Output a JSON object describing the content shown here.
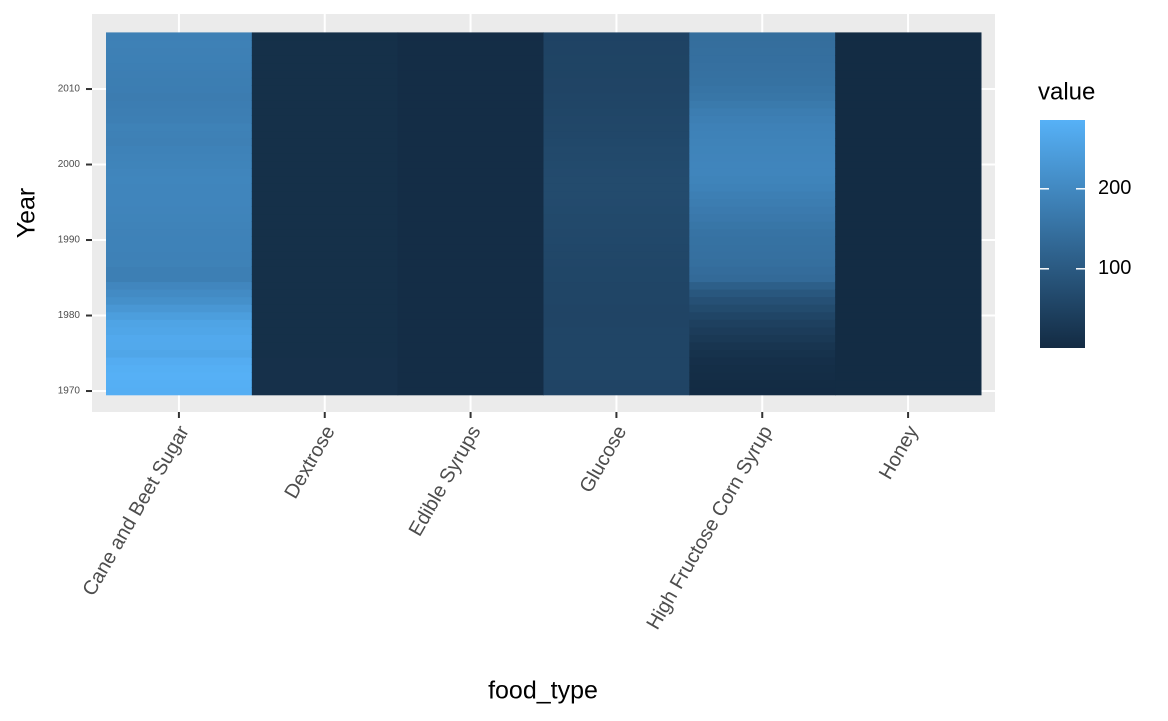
{
  "chart_data": {
    "type": "heatmap",
    "x_label": "food_type",
    "y_label": "Year",
    "categories": [
      "Cane and Beet Sugar",
      "Dextrose",
      "Edible Syrups",
      "Glucose",
      "High Fructose Corn Syrup",
      "Honey"
    ],
    "y": [
      1970,
      1971,
      1972,
      1973,
      1974,
      1975,
      1976,
      1977,
      1978,
      1979,
      1980,
      1981,
      1982,
      1983,
      1984,
      1985,
      1986,
      1987,
      1988,
      1989,
      1990,
      1991,
      1992,
      1993,
      1994,
      1995,
      1996,
      1997,
      1998,
      1999,
      2000,
      2001,
      2002,
      2003,
      2004,
      2005,
      2006,
      2007,
      2008,
      2009,
      2010,
      2011,
      2012,
      2013,
      2014,
      2015,
      2016,
      2017
    ],
    "values": [
      [
        280,
        282,
        284,
        281,
        276,
        262,
        268,
        270,
        262,
        258,
        245,
        230,
        215,
        205,
        195,
        180,
        180,
        185,
        184,
        186,
        186,
        187,
        188,
        190,
        191,
        193,
        192,
        193,
        194,
        192,
        190,
        188,
        186,
        182,
        183,
        185,
        180,
        178,
        176,
        174,
        176,
        177,
        178,
        180,
        181,
        182,
        183,
        182
      ],
      [
        12,
        12,
        12,
        12,
        12,
        11,
        11,
        11,
        11,
        11,
        11,
        11,
        11,
        11,
        11,
        11,
        11,
        11,
        11,
        11,
        11,
        11,
        11,
        11,
        11,
        11,
        11,
        11,
        11,
        11,
        11,
        11,
        11,
        11,
        11,
        11,
        11,
        11,
        11,
        11,
        11,
        11,
        11,
        11,
        11,
        11,
        11,
        11
      ],
      [
        5,
        5,
        5,
        5,
        5,
        5,
        5,
        5,
        5,
        5,
        5,
        5,
        5,
        5,
        5,
        5,
        5,
        5,
        5,
        5,
        5,
        5,
        5,
        5,
        5,
        5,
        5,
        5,
        5,
        5,
        5,
        5,
        5,
        5,
        5,
        5,
        5,
        5,
        5,
        5,
        5,
        5,
        5,
        5,
        5,
        5,
        5,
        5
      ],
      [
        55,
        55,
        56,
        56,
        57,
        57,
        57,
        56,
        56,
        55,
        55,
        55,
        56,
        56,
        57,
        58,
        58,
        59,
        60,
        61,
        62,
        63,
        64,
        65,
        66,
        67,
        68,
        68,
        68,
        67,
        66,
        65,
        64,
        62,
        61,
        60,
        59,
        58,
        57,
        56,
        55,
        55,
        54,
        54,
        54,
        53,
        53,
        53
      ],
      [
        2,
        3,
        5,
        7,
        10,
        15,
        22,
        30,
        38,
        46,
        56,
        68,
        80,
        95,
        112,
        135,
        140,
        145,
        148,
        150,
        152,
        155,
        160,
        165,
        170,
        175,
        180,
        186,
        190,
        192,
        192,
        191,
        190,
        188,
        186,
        184,
        180,
        175,
        168,
        160,
        156,
        152,
        150,
        148,
        146,
        145,
        144,
        143
      ],
      [
        3,
        3,
        3,
        3,
        3,
        3,
        3,
        3,
        3,
        3,
        3,
        3,
        3,
        3,
        3,
        3,
        3,
        3,
        3,
        3,
        3,
        3,
        3,
        3,
        3,
        3,
        3,
        3,
        3,
        3,
        3,
        3,
        3,
        3,
        3,
        3,
        3,
        3,
        3,
        3,
        3,
        3,
        3,
        3,
        3,
        3,
        3,
        3
      ]
    ],
    "ylim": [
      1969.5,
      2017.5
    ],
    "yticks": [
      1970,
      1980,
      1990,
      2000,
      2010
    ],
    "grid": true,
    "colorbar": {
      "title": "value",
      "lim": [
        1,
        286
      ],
      "ticks": [
        100,
        200
      ],
      "low": "#132B43",
      "high": "#56B1F7"
    }
  }
}
